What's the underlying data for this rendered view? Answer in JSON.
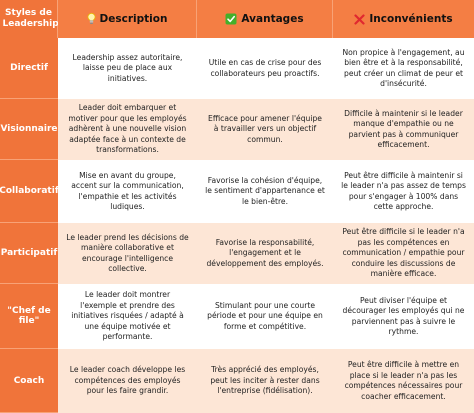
{
  "header": {
    "corner": "Styles de Leadership",
    "columns": [
      {
        "label": "Description",
        "icon": "lightbulb-icon"
      },
      {
        "label": "Avantages",
        "icon": "check-box-icon"
      },
      {
        "label": "Inconvénients",
        "icon": "cross-mark-icon"
      }
    ]
  },
  "colors": {
    "header": "#f47e44",
    "label": "#f0743a",
    "band": "#fde6d6",
    "check": "#43b02a",
    "cross": "#e0282f"
  },
  "rows": [
    {
      "style": "Directif",
      "description": "Leadership assez autoritaire, laisse peu de place aux initiatives.",
      "avantages": "Utile en cas de crise pour des collaborateurs peu proactifs.",
      "inconvenients": "Non propice à l'engagement, au bien être et à la responsabilité, peut créer un climat de peur et d'insécurité."
    },
    {
      "style": "Visionnaire",
      "description": "Leader doit embarquer et motiver pour que les employés adhèrent à une nouvelle vision adaptée face à un contexte de transformations.",
      "avantages": "Efficace pour amener l'équipe à travailler vers un objectif commun.",
      "inconvenients": "Difficile à maintenir si le leader manque d'empathie ou ne parvient pas à communiquer efficacement."
    },
    {
      "style": "Collaboratif",
      "description": "Mise en avant du groupe, accent sur la communication, l'empathie et les activités ludiques.",
      "avantages": "Favorise la cohésion d'équipe, le sentiment d'appartenance et le bien-être.",
      "inconvenients": "Peut être difficile à maintenir si le leader n'a pas assez de temps pour s'engager à 100% dans cette approche."
    },
    {
      "style": "Participatif",
      "description": "Le leader prend les décisions de manière collaborative et encourage l'intelligence collective.",
      "avantages": "Favorise la responsabilité, l'engagement et le développement des employés.",
      "inconvenients": "Peut être difficile si le leader n'a pas les compétences en communication / empathie pour conduire les discussions de manière efficace."
    },
    {
      "style": "\"Chef de file\"",
      "description": "Le leader doit montrer l'exemple et prendre des initiatives risquées / adapté à une équipe motivée et performante.",
      "avantages": "Stimulant pour une courte période et pour une équipe en forme et compétitive.",
      "inconvenients": "Peut diviser l'équipe et décourager les employés qui ne parviennent pas à suivre le rythme."
    },
    {
      "style": "Coach",
      "description": "Le leader coach développe les compétences des employés pour les faire grandir.",
      "avantages": "Très apprécié des employés, peut les inciter à rester dans l'entreprise (fidélisation).",
      "inconvenients": "Peut être difficile à mettre en place si le leader n'a pas les compétences nécessaires pour coacher efficacement."
    }
  ]
}
